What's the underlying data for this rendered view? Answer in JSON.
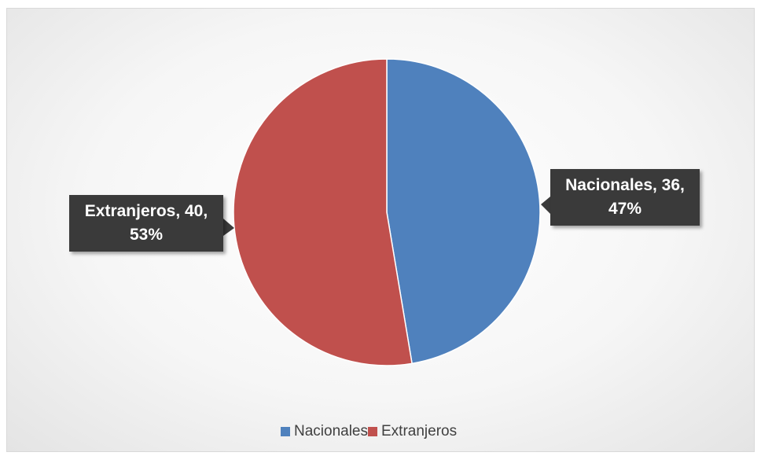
{
  "chart_data": {
    "type": "pie",
    "categories": [
      "Nacionales",
      "Extranjeros"
    ],
    "values": [
      36,
      40
    ],
    "value_labels": [
      "Nacionales, 36, 47%",
      "Extranjeros, 40, 53%"
    ],
    "colors": [
      "#4f81bd",
      "#c0504d"
    ]
  }
}
